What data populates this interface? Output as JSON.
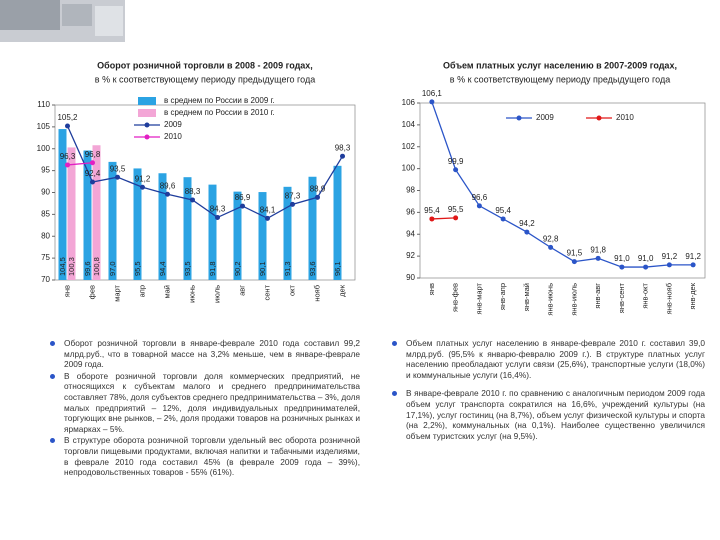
{
  "chart_data": [
    {
      "type": "bar",
      "title": "Оборот розничной торговли в 2008 - 2009 годах,",
      "subtitle": "в % к соответствующему периоду предыдущего года",
      "categories": [
        "янв",
        "фев",
        "март",
        "апр",
        "май",
        "июнь",
        "июль",
        "авг",
        "сент",
        "окт",
        "нояб",
        "дек"
      ],
      "ylim": [
        70,
        110
      ],
      "yticks": [
        70,
        75,
        80,
        85,
        90,
        95,
        100,
        105,
        110
      ],
      "series": [
        {
          "name": "в среднем по России в 2009 г.",
          "type": "bar",
          "color": "#2ba3e3",
          "values": [
            104.5,
            99.6,
            97.0,
            95.5,
            94.4,
            93.5,
            91.8,
            90.2,
            90.1,
            91.3,
            93.6,
            96.1
          ],
          "value_labels": [
            "104,5",
            "99,6",
            "97,0",
            "95,5",
            "94,4",
            "93,5",
            "91,8",
            "90,2",
            "90,1",
            "91,3",
            "93,6",
            "96,1"
          ]
        },
        {
          "name": "в среднем по России в 2010 г.",
          "type": "bar",
          "color": "#f3a6d6",
          "values": [
            100.3,
            100.8,
            null,
            null,
            null,
            null,
            null,
            null,
            null,
            null,
            null,
            null
          ],
          "value_labels": [
            "100,3",
            "100,8",
            null,
            null,
            null,
            null,
            null,
            null,
            null,
            null,
            null,
            null
          ]
        },
        {
          "name": "2009",
          "type": "line",
          "color": "#1f3d9c",
          "values": [
            105.2,
            92.4,
            93.5,
            91.2,
            89.6,
            88.3,
            84.3,
            86.9,
            84.1,
            87.3,
            88.9,
            98.3
          ],
          "value_labels": [
            "105,2",
            "92,4",
            "93,5",
            "91,2",
            "89,6",
            "88,3",
            "84,3",
            "86,9",
            "84,1",
            "87,3",
            "88,9",
            "98,3"
          ]
        },
        {
          "name": "2010",
          "type": "line",
          "color": "#e21fc4",
          "values": [
            96.3,
            96.8,
            null,
            null,
            null,
            null,
            null,
            null,
            null,
            null,
            null,
            null
          ],
          "value_labels": [
            "96,3",
            "96,8",
            null,
            null,
            null,
            null,
            null,
            null,
            null,
            null,
            null,
            null
          ]
        }
      ]
    },
    {
      "type": "line",
      "title": "Объем платных услуг населению в 2007-2009 годах,",
      "subtitle": "в % к соответствующему периоду предыдущего года",
      "categories": [
        "янв",
        "янв-фев",
        "янв-март",
        "янв-апр",
        "янв-май",
        "янв-июнь",
        "янв-июль",
        "янв-авг",
        "янв-сент",
        "янв-окт",
        "янв-нояб",
        "янв-дек"
      ],
      "ylim": [
        90,
        106
      ],
      "yticks": [
        90,
        92,
        94,
        96,
        98,
        100,
        102,
        104,
        106
      ],
      "series": [
        {
          "name": "2009",
          "type": "line",
          "color": "#2b55c8",
          "values": [
            106.1,
            99.9,
            96.6,
            95.4,
            94.2,
            92.8,
            91.5,
            91.8,
            91.0,
            91.0,
            91.2,
            91.2
          ],
          "value_labels": [
            "106,1",
            "99,9",
            "96,6",
            "95,4",
            "94,2",
            "92,8",
            "91,5",
            "91,8",
            "91,0",
            "91,0",
            "91,2",
            "91,2"
          ]
        },
        {
          "name": "2010",
          "type": "line",
          "color": "#e01818",
          "values": [
            95.4,
            95.5,
            null,
            null,
            null,
            null,
            null,
            null,
            null,
            null,
            null,
            null
          ],
          "value_labels": [
            "95,4",
            "95,5",
            null,
            null,
            null,
            null,
            null,
            null,
            null,
            null,
            null,
            null
          ]
        }
      ]
    }
  ],
  "left_text": [
    "Оборот розничной торговли в январе-феврале 2010 года составил 99,2 млрд.руб., что в товарной массе на 3,2% меньше, чем в январе-феврале 2009 года.",
    "В обороте розничной торговли доля коммерческих предприятий, не относящихся к субъектам малого и среднего предпринимательства составляет 78%, доля субъектов среднего предпринимательства – 3%, доля малых предприятий – 12%, доля индивидуальных предпринимателей, торгующих вне рынков, – 2%, доля продажи товаров на розничных рынках и ярмарках – 5%.",
    "В структуре оборота розничной торговли удельный вес оборота розничной торговли пищевыми продуктами, включая напитки и табачными изделиями, в феврале 2010 года составил 45% (в феврале 2009 года – 39%), непродовольственных товаров - 55% (61%)."
  ],
  "right_text": [
    "Объем платных услуг населению в январе-феврале 2010 г. составил 39,0 млрд.руб. (95,5% к январю-февралю 2009 г.). В структуре платных услуг населению преобладают услуги связи (25,6%), транспортные услуги (18,0%) и коммунальные услуги (16,4%).",
    "В январе-феврале 2010 г. по сравнению с аналогичным периодом 2009 года объем услуг транспорта сократился на 16,6%, учреждений культуры (на 17,1%), услуг гостиниц (на 8,7%), объем услуг физической культуры и спорта (на 2,2%), коммунальных (на 0,1%). Наиболее существенно увеличился объем туристских услуг (на 9,5%)."
  ]
}
